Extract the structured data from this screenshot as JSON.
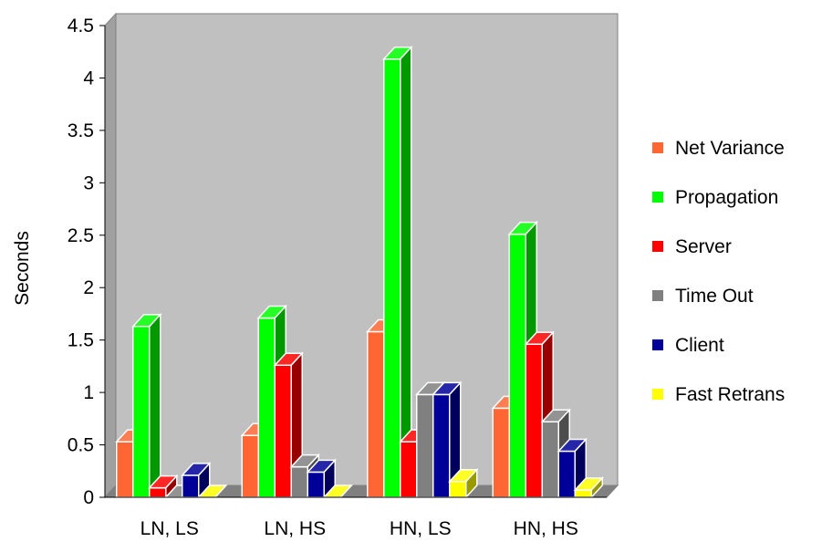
{
  "chart_data": {
    "type": "bar",
    "style": "3d-clustered",
    "title": "",
    "xlabel": "",
    "ylabel": "Seconds",
    "ylim": [
      0,
      4.5
    ],
    "yticks": [
      "0",
      "0.5",
      "1",
      "1.5",
      "2",
      "2.5",
      "3",
      "3.5",
      "4",
      "4.5"
    ],
    "grid": false,
    "legend_position": "right",
    "plot_background": "#c0c0c0",
    "categories": [
      "LN, LS",
      "LN, HS",
      "HN, LS",
      "HN, HS"
    ],
    "series": [
      {
        "name": "Net Variance",
        "color": "#ff6633",
        "values": [
          0.53,
          0.59,
          1.58,
          0.85
        ]
      },
      {
        "name": "Propagation",
        "color": "#00ff00",
        "values": [
          1.63,
          1.71,
          4.18,
          2.51
        ]
      },
      {
        "name": "Server",
        "color": "#ff0000",
        "values": [
          0.09,
          1.26,
          0.53,
          1.46
        ]
      },
      {
        "name": "Time Out",
        "color": "#808080",
        "values": [
          0.0,
          0.29,
          0.98,
          0.72
        ]
      },
      {
        "name": "Client",
        "color": "#000099",
        "values": [
          0.21,
          0.24,
          0.98,
          0.44
        ]
      },
      {
        "name": "Fast Retrans",
        "color": "#ffff00",
        "values": [
          0.0,
          0.0,
          0.15,
          0.07
        ]
      }
    ]
  }
}
